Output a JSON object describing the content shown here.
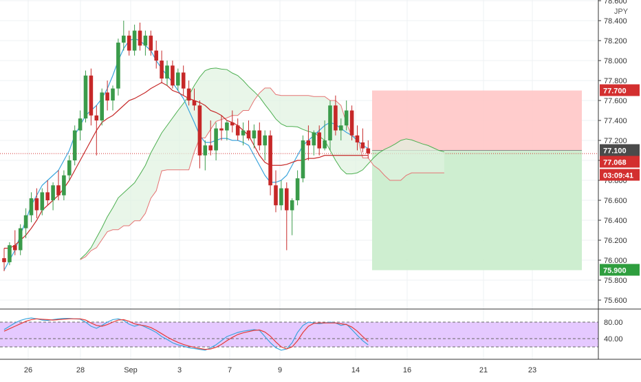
{
  "currency_label": "JPY",
  "price_axis": {
    "ticks": [
      "78.600",
      "78.400",
      "78.200",
      "78.000",
      "77.800",
      "77.600",
      "77.400",
      "77.200",
      "77.000",
      "76.800",
      "76.600",
      "76.400",
      "76.200",
      "76.000",
      "75.800",
      "75.600"
    ],
    "badges": [
      {
        "value": "77.700",
        "color": "#d32f2f"
      },
      {
        "value": "77.100",
        "color": "#4a4a4a"
      },
      {
        "value": "77.068",
        "color": "#d32f2f"
      },
      {
        "value": "03:09:41",
        "color": "#d32f2f"
      },
      {
        "value": "75.900",
        "color": "#2e9e3e"
      }
    ]
  },
  "osc_axis": {
    "ticks": [
      "80.00",
      "40.00"
    ]
  },
  "time_axis": {
    "ticks": [
      "26",
      "28",
      "Sep",
      "3",
      "7",
      "9",
      "14",
      "16",
      "21",
      "23"
    ]
  },
  "colors": {
    "up": "#3a9b4a",
    "down": "#c62828",
    "tenkan": "#3aa4dc",
    "kijun": "#c62828",
    "span_a": "#4caf50",
    "span_b": "#e57373",
    "stoch_k": "#3aa4dc",
    "stoch_d": "#e53935",
    "osc_bg": "#e5c9ff",
    "stop_zone": "#ffc7c7",
    "target_zone": "#c9eccb"
  },
  "chart_data": {
    "type": "candlestick",
    "symbol_quote": "JPY",
    "ylim": [
      75.5,
      78.62
    ],
    "ohlc": [
      [
        76.02,
        76.12,
        75.89,
        75.98
      ],
      [
        75.98,
        76.18,
        75.95,
        76.15
      ],
      [
        76.15,
        76.3,
        76.05,
        76.1
      ],
      [
        76.1,
        76.36,
        76.05,
        76.32
      ],
      [
        76.32,
        76.52,
        76.22,
        76.45
      ],
      [
        76.45,
        76.68,
        76.38,
        76.62
      ],
      [
        76.62,
        76.72,
        76.42,
        76.5
      ],
      [
        76.5,
        76.72,
        76.45,
        76.68
      ],
      [
        76.68,
        76.8,
        76.55,
        76.6
      ],
      [
        76.6,
        76.78,
        76.5,
        76.75
      ],
      [
        76.75,
        76.9,
        76.6,
        76.65
      ],
      [
        76.65,
        76.9,
        76.6,
        76.85
      ],
      [
        76.85,
        77.05,
        76.8,
        77.0
      ],
      [
        77.0,
        77.35,
        76.95,
        77.3
      ],
      [
        77.3,
        77.5,
        77.2,
        77.42
      ],
      [
        77.42,
        77.9,
        77.38,
        77.85
      ],
      [
        77.85,
        77.92,
        77.35,
        77.45
      ],
      [
        77.45,
        77.55,
        77.05,
        77.4
      ],
      [
        77.4,
        77.72,
        77.35,
        77.68
      ],
      [
        77.68,
        77.8,
        77.5,
        77.6
      ],
      [
        77.6,
        77.75,
        77.5,
        77.72
      ],
      [
        77.72,
        78.22,
        77.65,
        78.18
      ],
      [
        78.18,
        78.4,
        78.1,
        78.25
      ],
      [
        78.25,
        78.3,
        78.05,
        78.1
      ],
      [
        78.1,
        78.36,
        78.05,
        78.3
      ],
      [
        78.3,
        78.38,
        78.1,
        78.15
      ],
      [
        78.15,
        78.3,
        78.05,
        78.25
      ],
      [
        78.25,
        78.3,
        78.05,
        78.1
      ],
      [
        78.1,
        78.2,
        77.92,
        78.0
      ],
      [
        78.0,
        78.1,
        77.78,
        77.82
      ],
      [
        77.82,
        78.0,
        77.75,
        77.95
      ],
      [
        77.95,
        78.0,
        77.72,
        77.75
      ],
      [
        77.75,
        77.92,
        77.7,
        77.88
      ],
      [
        77.88,
        77.95,
        77.65,
        77.72
      ],
      [
        77.72,
        77.8,
        77.55,
        77.6
      ],
      [
        77.6,
        77.72,
        77.5,
        77.55
      ],
      [
        77.55,
        77.6,
        76.92,
        77.05
      ],
      [
        77.05,
        77.2,
        76.9,
        77.15
      ],
      [
        77.15,
        77.4,
        77.05,
        77.1
      ],
      [
        77.1,
        77.38,
        77.0,
        77.32
      ],
      [
        77.32,
        77.45,
        77.2,
        77.3
      ],
      [
        77.3,
        77.4,
        77.2,
        77.38
      ],
      [
        77.38,
        77.5,
        77.28,
        77.35
      ],
      [
        77.35,
        77.42,
        77.2,
        77.25
      ],
      [
        77.25,
        77.38,
        77.15,
        77.3
      ],
      [
        77.3,
        77.4,
        77.2,
        77.22
      ],
      [
        77.22,
        77.36,
        77.12,
        77.3
      ],
      [
        77.3,
        77.38,
        77.1,
        77.15
      ],
      [
        77.15,
        77.3,
        77.0,
        77.25
      ],
      [
        77.25,
        77.3,
        76.65,
        76.75
      ],
      [
        76.75,
        76.9,
        76.48,
        76.55
      ],
      [
        76.55,
        76.8,
        76.5,
        76.72
      ],
      [
        76.72,
        76.78,
        76.1,
        76.5
      ],
      [
        76.5,
        76.62,
        76.25,
        76.6
      ],
      [
        76.6,
        76.9,
        76.55,
        76.82
      ],
      [
        76.82,
        77.25,
        76.78,
        77.2
      ],
      [
        77.2,
        77.35,
        77.0,
        77.15
      ],
      [
        77.15,
        77.3,
        77.05,
        77.28
      ],
      [
        77.28,
        77.35,
        77.05,
        77.12
      ],
      [
        77.12,
        77.4,
        77.1,
        77.2
      ],
      [
        77.2,
        77.6,
        77.1,
        77.55
      ],
      [
        77.55,
        77.65,
        77.25,
        77.3
      ],
      [
        77.3,
        77.42,
        77.2,
        77.35
      ],
      [
        77.35,
        77.6,
        77.3,
        77.5
      ],
      [
        77.5,
        77.55,
        77.2,
        77.25
      ],
      [
        77.25,
        77.35,
        77.1,
        77.18
      ],
      [
        77.18,
        77.32,
        77.08,
        77.12
      ],
      [
        77.12,
        77.2,
        77.02,
        77.07
      ]
    ],
    "tenkan": [
      75.9,
      76.0,
      76.1,
      76.25,
      76.4,
      76.55,
      76.65,
      76.75,
      76.8,
      76.85,
      76.9,
      77.0,
      77.1,
      77.25,
      77.35,
      77.45,
      77.5,
      77.55,
      77.62,
      77.72,
      77.85,
      78.0,
      78.12,
      78.2,
      78.22,
      78.2,
      78.15,
      78.1,
      78.0,
      77.92,
      77.85,
      77.78,
      77.7,
      77.62,
      77.5,
      77.38,
      77.25,
      77.18,
      77.18,
      77.2,
      77.22,
      77.22,
      77.2,
      77.2,
      77.18,
      77.15,
      77.05,
      76.95,
      76.85,
      76.78,
      76.78,
      76.8,
      76.85,
      76.95,
      77.05,
      77.15,
      77.2,
      77.25,
      77.3,
      77.35,
      77.38,
      77.36,
      77.32,
      77.28,
      77.25,
      77.2,
      77.15,
      77.12
    ],
    "kijun": [
      76.12,
      76.12,
      76.15,
      76.2,
      76.25,
      76.32,
      76.4,
      76.5,
      76.55,
      76.6,
      76.65,
      76.72,
      76.8,
      76.9,
      77.0,
      77.1,
      77.2,
      77.3,
      77.38,
      77.42,
      77.45,
      77.5,
      77.55,
      77.6,
      77.62,
      77.65,
      77.68,
      77.72,
      77.75,
      77.78,
      77.75,
      77.7,
      77.68,
      77.65,
      77.62,
      77.6,
      77.58,
      77.55,
      77.5,
      77.48,
      77.45,
      77.4,
      77.38,
      77.35,
      77.3,
      77.25,
      77.15,
      77.05,
      76.98,
      76.95,
      76.95,
      76.95,
      76.96,
      76.98,
      77.0,
      77.0,
      77.02,
      77.02,
      77.03,
      77.05,
      77.05,
      77.05,
      77.05,
      77.05,
      77.05,
      77.05,
      77.05,
      77.05
    ],
    "stoch_k": [
      62,
      70,
      78,
      84,
      88,
      90,
      88,
      85,
      84,
      86,
      88,
      89,
      89,
      88,
      87,
      80,
      70,
      65,
      72,
      80,
      86,
      88,
      84,
      75,
      70,
      74,
      68,
      62,
      55,
      45,
      38,
      30,
      25,
      22,
      18,
      16,
      14,
      12,
      18,
      25,
      35,
      45,
      50,
      55,
      58,
      60,
      62,
      60,
      45,
      30,
      18,
      12,
      15,
      30,
      55,
      72,
      80,
      78,
      76,
      78,
      80,
      78,
      72,
      75,
      62,
      48,
      35,
      25
    ],
    "stoch_d": [
      58,
      64,
      70,
      76,
      82,
      86,
      88,
      87,
      86,
      85,
      86,
      87,
      88,
      88,
      88,
      85,
      78,
      72,
      70,
      74,
      80,
      85,
      86,
      82,
      76,
      73,
      71,
      67,
      60,
      52,
      44,
      37,
      31,
      26,
      22,
      19,
      16,
      14,
      15,
      19,
      26,
      35,
      43,
      50,
      54,
      57,
      60,
      61,
      56,
      46,
      32,
      20,
      15,
      20,
      35,
      55,
      70,
      77,
      78,
      78,
      78,
      78,
      76,
      74,
      68,
      58,
      45,
      33
    ],
    "stoch_levels": [
      80,
      40
    ],
    "position": {
      "entry": 77.1,
      "stop": 77.7,
      "target": 75.9
    }
  }
}
